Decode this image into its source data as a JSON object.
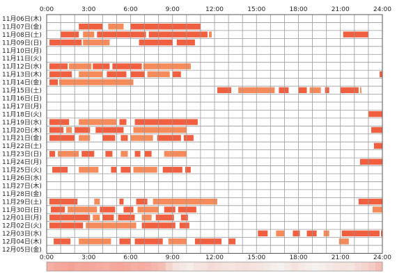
{
  "chart_data": {
    "type": "heatmap",
    "title": "",
    "xlabel": "",
    "ylabel": "",
    "xlim": [
      0,
      24
    ],
    "x_ticks": [
      "0:00",
      "3:00",
      "6:00",
      "9:00",
      "12:00",
      "15:00",
      "18:00",
      "21:00",
      "24:00"
    ],
    "grid": true,
    "colors": {
      "bar_primary": "#f06040",
      "bar_secondary": "#f58a5a",
      "grid": "#999999",
      "border": "#555555"
    },
    "rows": [
      {
        "label": "11月06日(木)",
        "intervals": []
      },
      {
        "label": "11月07日(金)",
        "intervals": [
          [
            2.3,
            4.0
          ],
          [
            4.4,
            5.5
          ],
          [
            6.0,
            11.0
          ]
        ]
      },
      {
        "label": "11月08日(土)",
        "intervals": [
          [
            1.0,
            2.3
          ],
          [
            2.6,
            3.4
          ],
          [
            3.6,
            7.1
          ],
          [
            7.3,
            11.5
          ],
          [
            11.6,
            11.8
          ],
          [
            21.2,
            23.0
          ]
        ]
      },
      {
        "label": "11月09日(日)",
        "intervals": [
          [
            0.2,
            2.5
          ],
          [
            2.6,
            4.5
          ],
          [
            6.6,
            9.0
          ],
          [
            9.3,
            10.6
          ]
        ]
      },
      {
        "label": "11月10日(月)",
        "intervals": []
      },
      {
        "label": "11月11日(火)",
        "intervals": []
      },
      {
        "label": "11月12日(水)",
        "intervals": [
          [
            0.2,
            1.5
          ],
          [
            1.6,
            3.2
          ],
          [
            3.3,
            4.5
          ],
          [
            4.7,
            6.8
          ],
          [
            6.9,
            10.3
          ]
        ]
      },
      {
        "label": "11月13日(木)",
        "intervals": [
          [
            0.2,
            1.8
          ],
          [
            2.3,
            4.0
          ],
          [
            4.3,
            5.7
          ],
          [
            6.0,
            7.0
          ],
          [
            7.2,
            8.8
          ],
          [
            9.0,
            9.6
          ],
          [
            23.8,
            24.0
          ]
        ]
      },
      {
        "label": "11月14日(金)",
        "intervals": [
          [
            0.2,
            0.8
          ],
          [
            0.9,
            6.2
          ]
        ]
      },
      {
        "label": "11月15日(土)",
        "intervals": [
          [
            12.2,
            13.2
          ],
          [
            13.7,
            16.3
          ],
          [
            16.6,
            17.3
          ],
          [
            18.0,
            18.6
          ],
          [
            18.8,
            19.6
          ],
          [
            19.9,
            20.2
          ],
          [
            21.0,
            22.3
          ],
          [
            22.4,
            22.5
          ]
        ]
      },
      {
        "label": "11月16日(日)",
        "intervals": []
      },
      {
        "label": "11月17日(月)",
        "intervals": []
      },
      {
        "label": "11月18日(火)",
        "intervals": [
          [
            23.0,
            24.0
          ]
        ]
      },
      {
        "label": "11月19日(水)",
        "intervals": [
          [
            0.2,
            1.6
          ],
          [
            2.3,
            5.0
          ],
          [
            5.2,
            5.7
          ],
          [
            6.3,
            10.8
          ]
        ]
      },
      {
        "label": "11月20日(木)",
        "intervals": [
          [
            0.2,
            1.2
          ],
          [
            1.4,
            1.8
          ],
          [
            2.0,
            3.1
          ],
          [
            3.5,
            5.5
          ],
          [
            6.2,
            10.0
          ],
          [
            23.2,
            24.0
          ]
        ]
      },
      {
        "label": "11月21日(金)",
        "intervals": [
          [
            0.2,
            2.0
          ],
          [
            2.3,
            3.1
          ],
          [
            4.0,
            4.9
          ],
          [
            5.3,
            5.8
          ],
          [
            6.0,
            7.6
          ],
          [
            7.9,
            9.6
          ],
          [
            9.8,
            10.5
          ]
        ]
      },
      {
        "label": "11月22日(土)",
        "intervals": [
          [
            23.4,
            24.0
          ]
        ]
      },
      {
        "label": "11月23日(日)",
        "intervals": [
          [
            0.2,
            0.6
          ],
          [
            0.8,
            2.3
          ],
          [
            2.5,
            3.4
          ],
          [
            4.2,
            4.7
          ],
          [
            5.3,
            5.8
          ],
          [
            6.3,
            6.7
          ],
          [
            7.0,
            7.5
          ],
          [
            8.4,
            10.0
          ]
        ]
      },
      {
        "label": "11月24日(月)",
        "intervals": [
          [
            22.4,
            24.0
          ]
        ]
      },
      {
        "label": "11月25日(火)",
        "intervals": [
          [
            0.4,
            1.5
          ],
          [
            2.3,
            3.7
          ],
          [
            4.6,
            5.0
          ],
          [
            5.3,
            6.0
          ],
          [
            6.2,
            7.9
          ],
          [
            8.3,
            9.7
          ],
          [
            9.9,
            10.3
          ]
        ]
      },
      {
        "label": "11月26日(水)",
        "intervals": []
      },
      {
        "label": "11月27日(木)",
        "intervals": []
      },
      {
        "label": "11月28日(金)",
        "intervals": []
      },
      {
        "label": "11月29日(土)",
        "intervals": [
          [
            0.2,
            2.2
          ],
          [
            3.4,
            3.8
          ],
          [
            5.2,
            5.5
          ],
          [
            6.4,
            7.2
          ],
          [
            7.6,
            12.2
          ],
          [
            22.3,
            24.0
          ]
        ]
      },
      {
        "label": "11月30日(日)",
        "intervals": [
          [
            0.3,
            1.3
          ],
          [
            1.5,
            3.6
          ],
          [
            3.8,
            4.9
          ],
          [
            5.5,
            6.2
          ],
          [
            6.5,
            8.0
          ],
          [
            8.4,
            9.2
          ],
          [
            9.4,
            10.7
          ],
          [
            23.3,
            24.0
          ]
        ]
      },
      {
        "label": "12月01日(月)",
        "intervals": [
          [
            0.2,
            3.1
          ],
          [
            3.3,
            3.8
          ],
          [
            4.0,
            4.8
          ],
          [
            5.1,
            6.3
          ],
          [
            6.8,
            7.5
          ],
          [
            7.8,
            9.1
          ],
          [
            9.6,
            10.1
          ]
        ]
      },
      {
        "label": "12月02日(火)",
        "intervals": [
          [
            0.2,
            2.6
          ],
          [
            2.8,
            6.4
          ],
          [
            6.8,
            9.2
          ],
          [
            9.5,
            10.2
          ]
        ]
      },
      {
        "label": "12月03日(水)",
        "intervals": [
          [
            15.1,
            15.8
          ],
          [
            16.4,
            17.0
          ],
          [
            17.6,
            18.1
          ],
          [
            18.6,
            19.3
          ],
          [
            19.8,
            20.2
          ],
          [
            21.1,
            23.8
          ],
          [
            23.9,
            24.0
          ]
        ]
      },
      {
        "label": "12月04日(木)",
        "intervals": [
          [
            0.5,
            1.7
          ],
          [
            2.3,
            4.6
          ],
          [
            5.2,
            6.0
          ],
          [
            6.3,
            8.3
          ],
          [
            8.7,
            10.0
          ],
          [
            10.6,
            12.5
          ],
          [
            13.0,
            13.5
          ],
          [
            20.9,
            21.6
          ]
        ]
      },
      {
        "label": "12月05日(金)",
        "intervals": []
      }
    ],
    "density": [
      0.55,
      0.6,
      0.62,
      0.65,
      0.6,
      0.62,
      0.6,
      0.58,
      0.55,
      0.6,
      0.62,
      0.6,
      0.55,
      0.58,
      0.55,
      0.5,
      0.45,
      0.3,
      0.2,
      0.15,
      0.12,
      0.18,
      0.2,
      0.25,
      0.22,
      0.2,
      0.18,
      0.2,
      0.22,
      0.2,
      0.18,
      0.15,
      0.12,
      0.1,
      0.15,
      0.2,
      0.15,
      0.12,
      0.1,
      0.12,
      0.15,
      0.18,
      0.2,
      0.18,
      0.25,
      0.3,
      0.35,
      0.45
    ]
  }
}
